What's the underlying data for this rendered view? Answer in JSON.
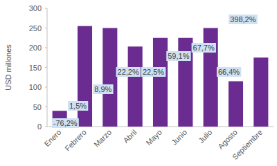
{
  "chart_data": {
    "type": "bar",
    "y_label": "USD millones",
    "categories": [
      "Enero",
      "Febrero",
      "Marzo",
      "Abril",
      "Mayo",
      "Junio",
      "Julio",
      "Agosto",
      "Septiembre"
    ],
    "values": [
      40,
      255,
      250,
      203,
      225,
      225,
      250,
      115,
      175
    ],
    "color": "#6b2c91",
    "ylim": [
      0,
      300
    ],
    "yticks": [
      0,
      50,
      100,
      150,
      200,
      250,
      300
    ],
    "grid": false,
    "annotations": [
      "-76,2%",
      "1,5%",
      "8,9%",
      "22,2%",
      "22,5%",
      "59,1%",
      "67,7%",
      "66,4%",
      "398,2%"
    ]
  }
}
